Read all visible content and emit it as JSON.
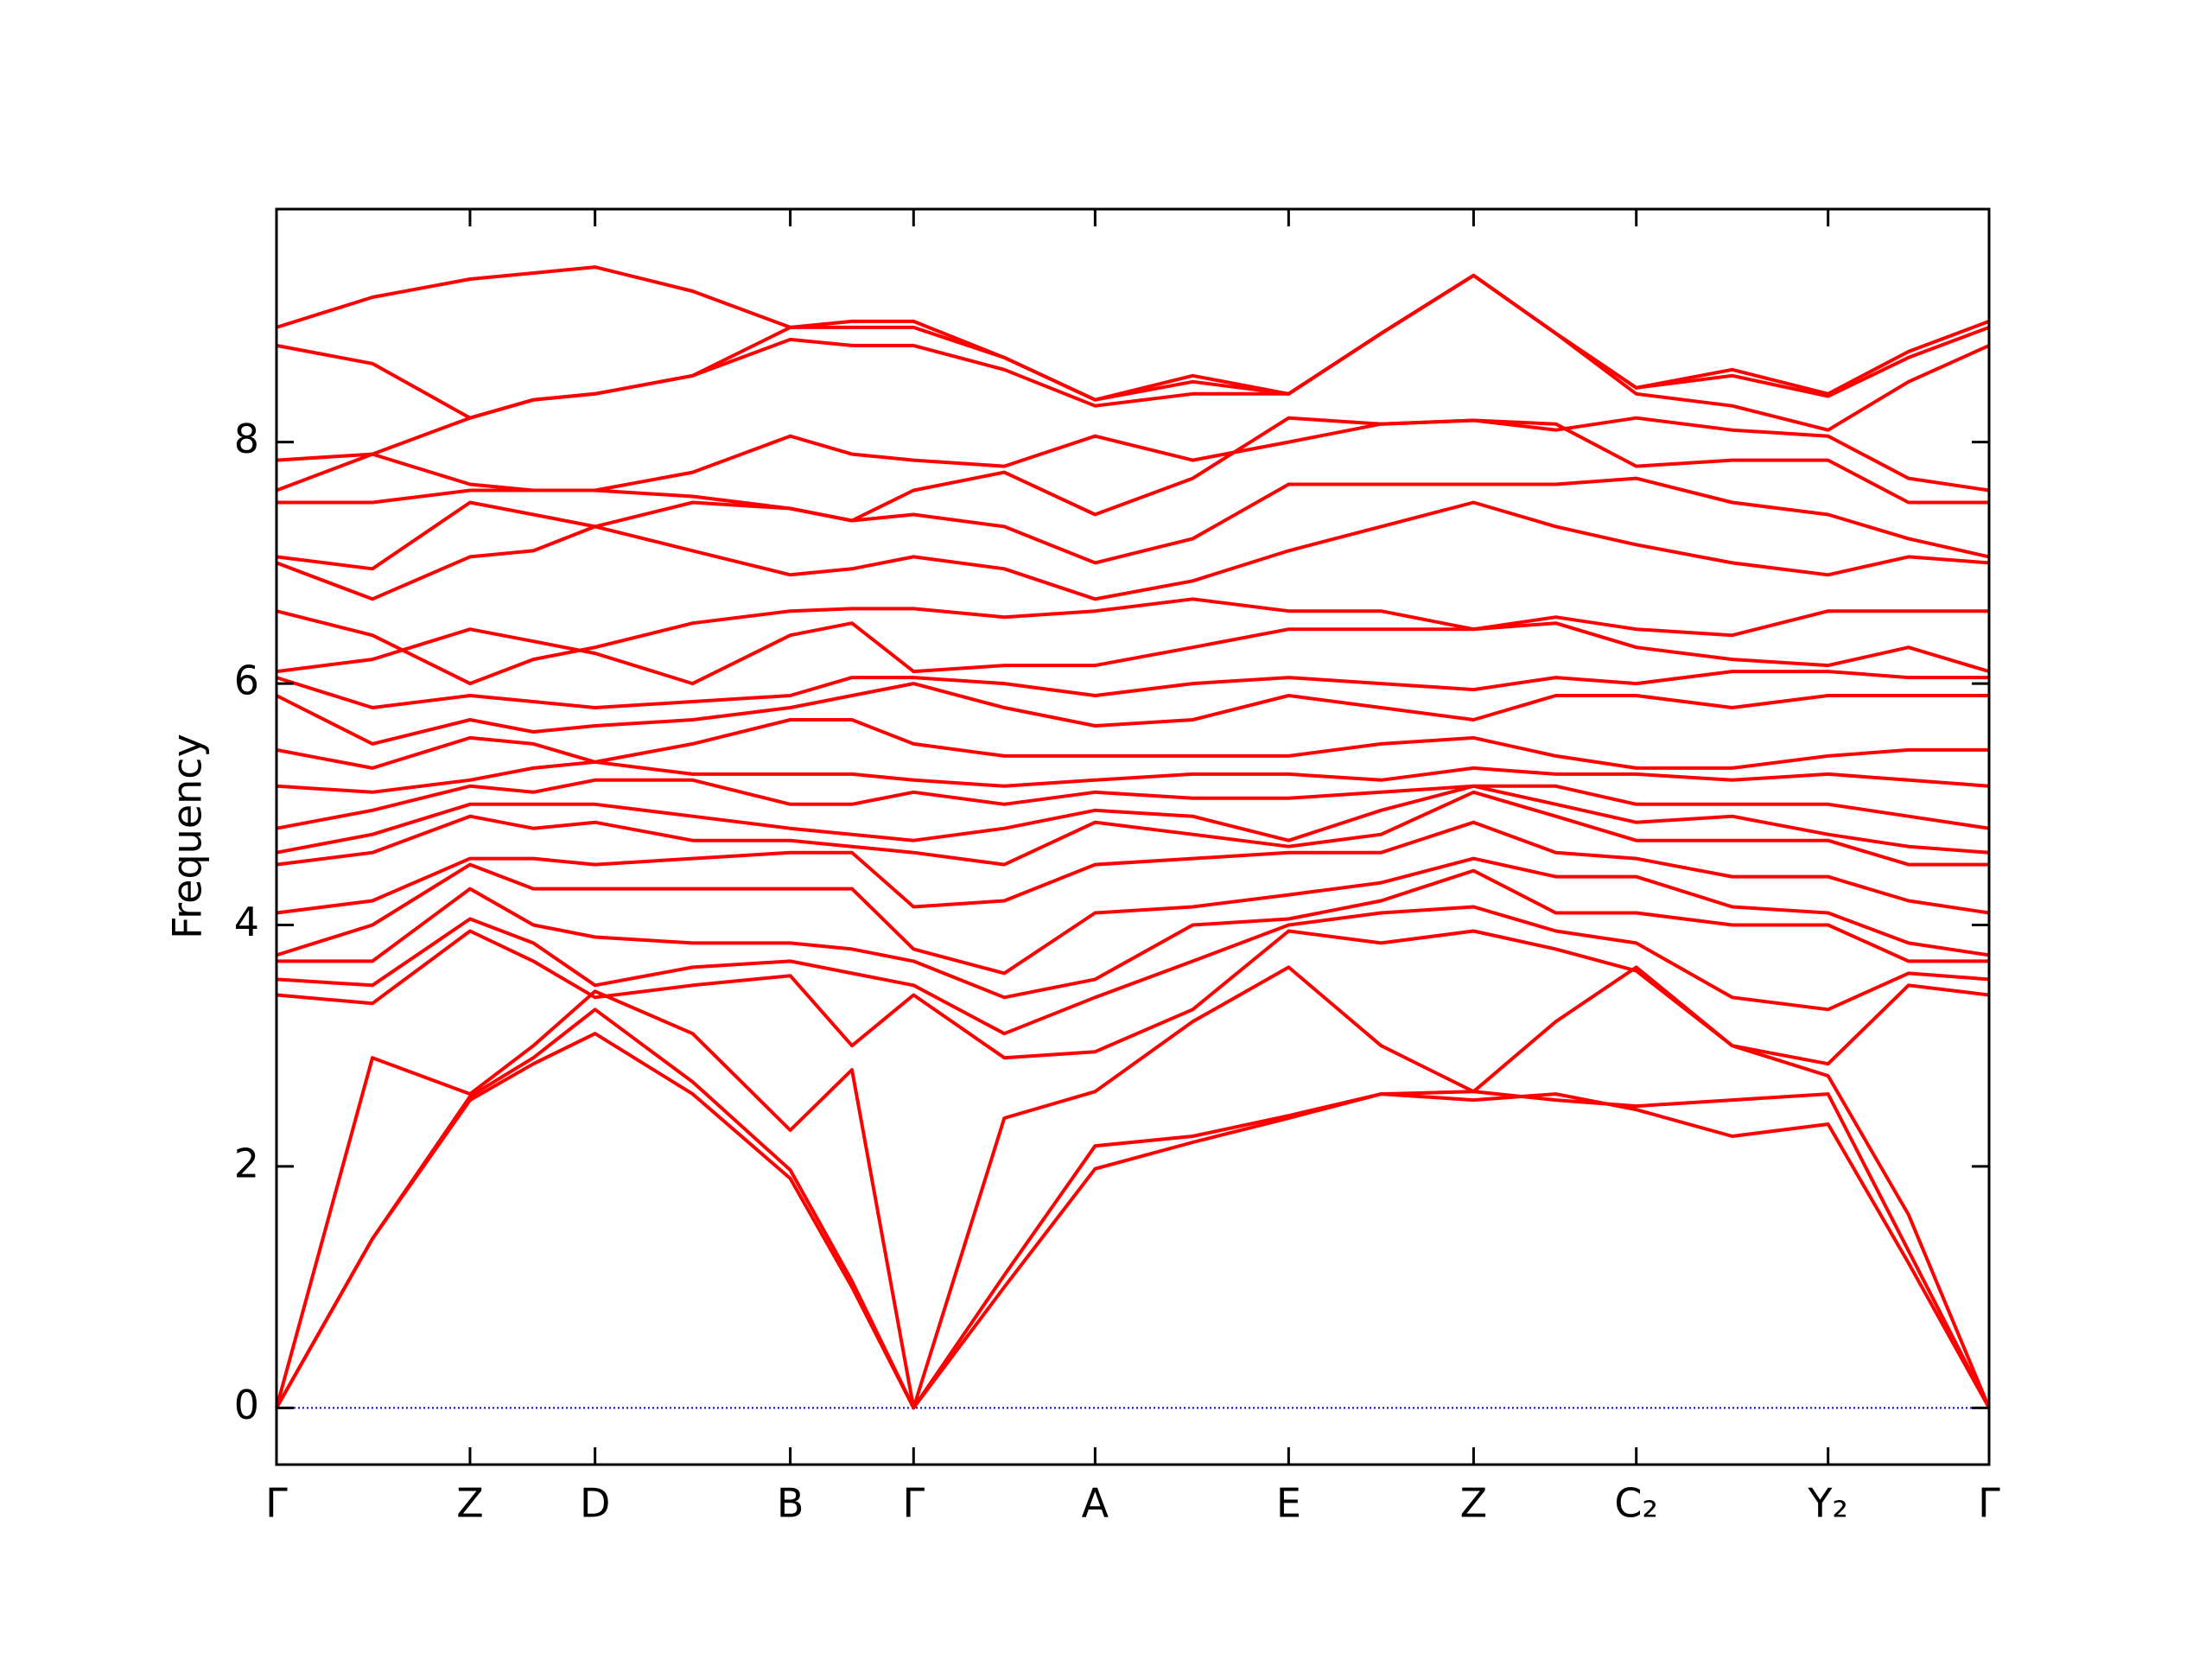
{
  "chart_data": {
    "type": "line",
    "ylabel": "Frequency",
    "color": "#ff0000",
    "x": [
      0,
      0.056,
      0.113,
      0.15,
      0.186,
      0.243,
      0.3,
      0.336,
      0.372,
      0.425,
      0.478,
      0.535,
      0.591,
      0.645,
      0.699,
      0.747,
      0.794,
      0.85,
      0.906,
      0.953,
      1.0
    ],
    "xlim": [
      0,
      1
    ],
    "xticks": [
      {
        "value": 0,
        "label": "Γ"
      },
      {
        "value": 0.113,
        "label": "Z"
      },
      {
        "value": 0.186,
        "label": "D"
      },
      {
        "value": 0.3,
        "label": "B"
      },
      {
        "value": 0.372,
        "label": "Γ"
      },
      {
        "value": 0.478,
        "label": "A"
      },
      {
        "value": 0.591,
        "label": "E"
      },
      {
        "value": 0.699,
        "label": "Z"
      },
      {
        "value": 0.794,
        "label": "C₂"
      },
      {
        "value": 0.906,
        "label": "Y₂"
      },
      {
        "value": 1.0,
        "label": "Γ"
      }
    ],
    "ylim": [
      -0.47,
      9.93
    ],
    "yticks": [
      0,
      2,
      4,
      6,
      8
    ],
    "hlines": [
      {
        "y": 0,
        "color": "#0000ff",
        "style": "dotted"
      }
    ],
    "series": [
      {
        "values": [
          0,
          1.4,
          2.55,
          2.85,
          3.1,
          2.6,
          1.9,
          1.0,
          0,
          1.0,
          1.98,
          2.2,
          2.4,
          2.6,
          2.55,
          2.6,
          2.47,
          2.25,
          2.35,
          1.2,
          0
        ]
      },
      {
        "values": [
          0,
          1.4,
          2.58,
          2.9,
          3.3,
          2.7,
          1.97,
          1.05,
          0,
          1.1,
          2.17,
          2.25,
          2.42,
          2.6,
          2.62,
          2.55,
          2.5,
          2.55,
          2.6,
          1.3,
          0
        ]
      },
      {
        "values": [
          0,
          2.9,
          2.6,
          3.0,
          3.45,
          3.1,
          2.3,
          2.8,
          0,
          2.4,
          2.62,
          3.2,
          3.65,
          3.0,
          2.62,
          3.2,
          3.65,
          3.0,
          2.75,
          1.6,
          0
        ]
      },
      {
        "values": [
          3.42,
          3.35,
          3.95,
          3.7,
          3.4,
          3.5,
          3.58,
          3.0,
          3.42,
          2.9,
          2.95,
          3.3,
          3.95,
          3.85,
          3.95,
          3.8,
          3.62,
          3.0,
          2.85,
          3.5,
          3.42
        ]
      },
      {
        "values": [
          3.55,
          3.5,
          4.05,
          3.85,
          3.5,
          3.65,
          3.7,
          3.6,
          3.5,
          3.1,
          3.4,
          3.7,
          4.0,
          4.1,
          4.15,
          3.95,
          3.85,
          3.4,
          3.3,
          3.6,
          3.55
        ]
      },
      {
        "values": [
          3.7,
          3.7,
          4.3,
          4.0,
          3.9,
          3.85,
          3.85,
          3.8,
          3.7,
          3.4,
          3.55,
          4.0,
          4.05,
          4.2,
          4.45,
          4.1,
          4.1,
          4.0,
          4.0,
          3.7,
          3.7
        ]
      },
      {
        "values": [
          3.75,
          4.0,
          4.5,
          4.3,
          4.3,
          4.3,
          4.3,
          4.3,
          3.8,
          3.6,
          4.1,
          4.15,
          4.25,
          4.35,
          4.55,
          4.4,
          4.4,
          4.15,
          4.1,
          3.85,
          3.75
        ]
      },
      {
        "values": [
          4.1,
          4.2,
          4.55,
          4.55,
          4.5,
          4.55,
          4.6,
          4.6,
          4.15,
          4.2,
          4.5,
          4.55,
          4.6,
          4.6,
          4.85,
          4.6,
          4.55,
          4.4,
          4.4,
          4.2,
          4.1
        ]
      },
      {
        "values": [
          4.5,
          4.6,
          4.9,
          4.8,
          4.85,
          4.7,
          4.7,
          4.65,
          4.6,
          4.5,
          4.85,
          4.75,
          4.65,
          4.75,
          5.1,
          4.9,
          4.7,
          4.7,
          4.7,
          4.5,
          4.5
        ]
      },
      {
        "values": [
          4.6,
          4.75,
          5.0,
          5.0,
          5.0,
          4.9,
          4.8,
          4.75,
          4.7,
          4.8,
          4.95,
          4.9,
          4.7,
          4.95,
          5.15,
          5.0,
          4.85,
          4.9,
          4.75,
          4.65,
          4.6
        ]
      },
      {
        "values": [
          4.8,
          4.95,
          5.15,
          5.1,
          5.2,
          5.2,
          5.0,
          5.0,
          5.1,
          5.0,
          5.1,
          5.05,
          5.05,
          5.1,
          5.15,
          5.15,
          5.0,
          5.0,
          5.0,
          4.9,
          4.8
        ]
      },
      {
        "values": [
          5.15,
          5.1,
          5.2,
          5.3,
          5.35,
          5.25,
          5.25,
          5.25,
          5.2,
          5.15,
          5.2,
          5.25,
          5.25,
          5.2,
          5.3,
          5.25,
          5.25,
          5.2,
          5.25,
          5.2,
          5.15
        ]
      },
      {
        "values": [
          5.45,
          5.3,
          5.55,
          5.5,
          5.35,
          5.5,
          5.7,
          5.7,
          5.5,
          5.4,
          5.4,
          5.4,
          5.4,
          5.5,
          5.55,
          5.4,
          5.3,
          5.3,
          5.4,
          5.45,
          5.45
        ]
      },
      {
        "values": [
          5.9,
          5.5,
          5.7,
          5.6,
          5.65,
          5.7,
          5.8,
          5.9,
          6.0,
          5.8,
          5.65,
          5.7,
          5.9,
          5.8,
          5.7,
          5.9,
          5.9,
          5.8,
          5.9,
          5.9,
          5.9
        ]
      },
      {
        "values": [
          6.05,
          5.8,
          5.9,
          5.85,
          5.8,
          5.85,
          5.9,
          6.05,
          6.05,
          6.0,
          5.9,
          6.0,
          6.05,
          6.0,
          5.95,
          6.05,
          6.0,
          6.1,
          6.1,
          6.05,
          6.05
        ]
      },
      {
        "values": [
          6.1,
          6.2,
          6.45,
          6.35,
          6.25,
          6.0,
          6.4,
          6.5,
          6.1,
          6.15,
          6.15,
          6.3,
          6.45,
          6.45,
          6.45,
          6.5,
          6.3,
          6.2,
          6.15,
          6.3,
          6.1
        ]
      },
      {
        "values": [
          6.6,
          6.4,
          6.0,
          6.2,
          6.3,
          6.5,
          6.6,
          6.62,
          6.62,
          6.55,
          6.6,
          6.7,
          6.6,
          6.6,
          6.45,
          6.55,
          6.45,
          6.4,
          6.6,
          6.6,
          6.6
        ]
      },
      {
        "values": [
          7.0,
          6.7,
          7.05,
          7.1,
          7.3,
          7.1,
          6.9,
          6.95,
          7.05,
          6.95,
          6.7,
          6.85,
          7.1,
          7.3,
          7.5,
          7.3,
          7.15,
          7.0,
          6.9,
          7.05,
          7.0
        ]
      },
      {
        "values": [
          7.05,
          6.95,
          7.5,
          7.4,
          7.3,
          7.5,
          7.45,
          7.35,
          7.4,
          7.3,
          7.0,
          7.2,
          7.65,
          7.65,
          7.65,
          7.65,
          7.7,
          7.5,
          7.4,
          7.2,
          7.05
        ]
      },
      {
        "values": [
          7.5,
          7.5,
          7.6,
          7.6,
          7.6,
          7.55,
          7.45,
          7.35,
          7.6,
          7.75,
          7.4,
          7.7,
          8.2,
          8.15,
          8.18,
          8.15,
          7.8,
          7.85,
          7.85,
          7.5,
          7.5
        ]
      },
      {
        "values": [
          7.6,
          7.9,
          7.65,
          7.6,
          7.6,
          7.75,
          8.05,
          7.9,
          7.85,
          7.8,
          8.05,
          7.85,
          8.0,
          8.15,
          8.18,
          8.1,
          8.2,
          8.1,
          8.05,
          7.7,
          7.6
        ]
      },
      {
        "values": [
          7.85,
          7.9,
          8.2,
          8.35,
          8.4,
          8.55,
          8.85,
          8.8,
          8.8,
          8.6,
          8.3,
          8.4,
          8.4,
          8.9,
          9.38,
          8.9,
          8.4,
          8.3,
          8.1,
          8.5,
          8.8
        ]
      },
      {
        "values": [
          8.8,
          8.65,
          8.2,
          8.35,
          8.4,
          8.55,
          8.95,
          8.95,
          8.95,
          8.7,
          8.35,
          8.5,
          8.4,
          8.9,
          9.38,
          8.9,
          8.45,
          8.55,
          8.38,
          8.7,
          8.95
        ]
      },
      {
        "values": [
          8.95,
          9.2,
          9.35,
          9.4,
          9.45,
          9.25,
          8.95,
          9.0,
          9.0,
          8.7,
          8.35,
          8.55,
          8.4,
          8.9,
          9.38,
          8.9,
          8.45,
          8.6,
          8.4,
          8.75,
          9.0
        ]
      }
    ]
  }
}
